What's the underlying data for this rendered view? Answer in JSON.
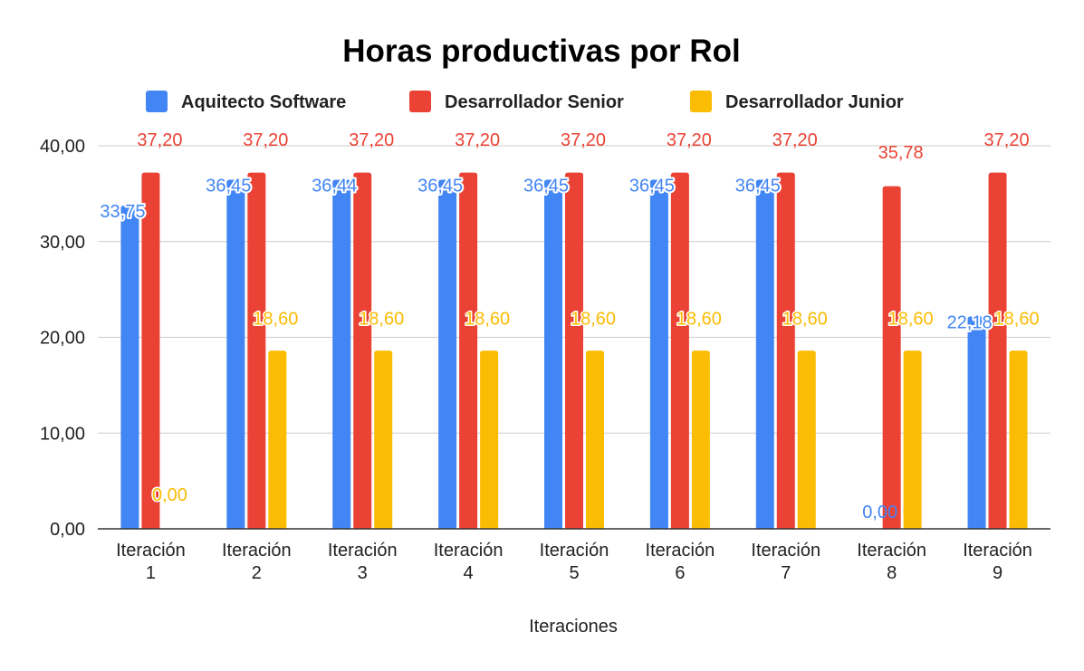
{
  "chart_data": {
    "type": "bar",
    "title": "Horas productivas por Rol",
    "xlabel": "Iteraciones",
    "ylabel": "",
    "ylim": [
      0,
      40
    ],
    "yticks": [
      "0,00",
      "10,00",
      "20,00",
      "30,00",
      "40,00"
    ],
    "ytick_values": [
      0,
      10,
      20,
      30,
      40
    ],
    "grid": true,
    "legend_position": "top",
    "categories": [
      [
        "Iteración",
        "1"
      ],
      [
        "Iteración",
        "2"
      ],
      [
        "Iteración",
        "3"
      ],
      [
        "Iteración",
        "4"
      ],
      [
        "Iteración",
        "5"
      ],
      [
        "Iteración",
        "6"
      ],
      [
        "Iteración",
        "7"
      ],
      [
        "Iteración",
        "8"
      ],
      [
        "Iteración",
        "9"
      ]
    ],
    "series": [
      {
        "name": "Aquitecto Software",
        "color": "#4285F4",
        "values": [
          33.75,
          36.45,
          36.44,
          36.45,
          36.45,
          36.45,
          36.45,
          0,
          22.18
        ],
        "labels": [
          "33,75",
          "36,45",
          "36,44",
          "36,45",
          "36,45",
          "36,45",
          "36,45",
          "0,00",
          "22,18"
        ]
      },
      {
        "name": "Desarrollador Senior",
        "color": "#EA4335",
        "values": [
          37.2,
          37.2,
          37.2,
          37.2,
          37.2,
          37.2,
          37.2,
          35.78,
          37.2
        ],
        "labels": [
          "37,20",
          "37,20",
          "37,20",
          "37,20",
          "37,20",
          "37,20",
          "37,20",
          "35,78",
          "37,20"
        ]
      },
      {
        "name": "Desarrollador Junior",
        "color": "#FBBC04",
        "values": [
          0,
          18.6,
          18.6,
          18.6,
          18.6,
          18.6,
          18.6,
          18.6,
          18.6
        ],
        "labels": [
          "0,00",
          "18,60",
          "18,60",
          "18,60",
          "18,60",
          "18,60",
          "18,60",
          "18,60",
          "18,60"
        ]
      }
    ]
  }
}
